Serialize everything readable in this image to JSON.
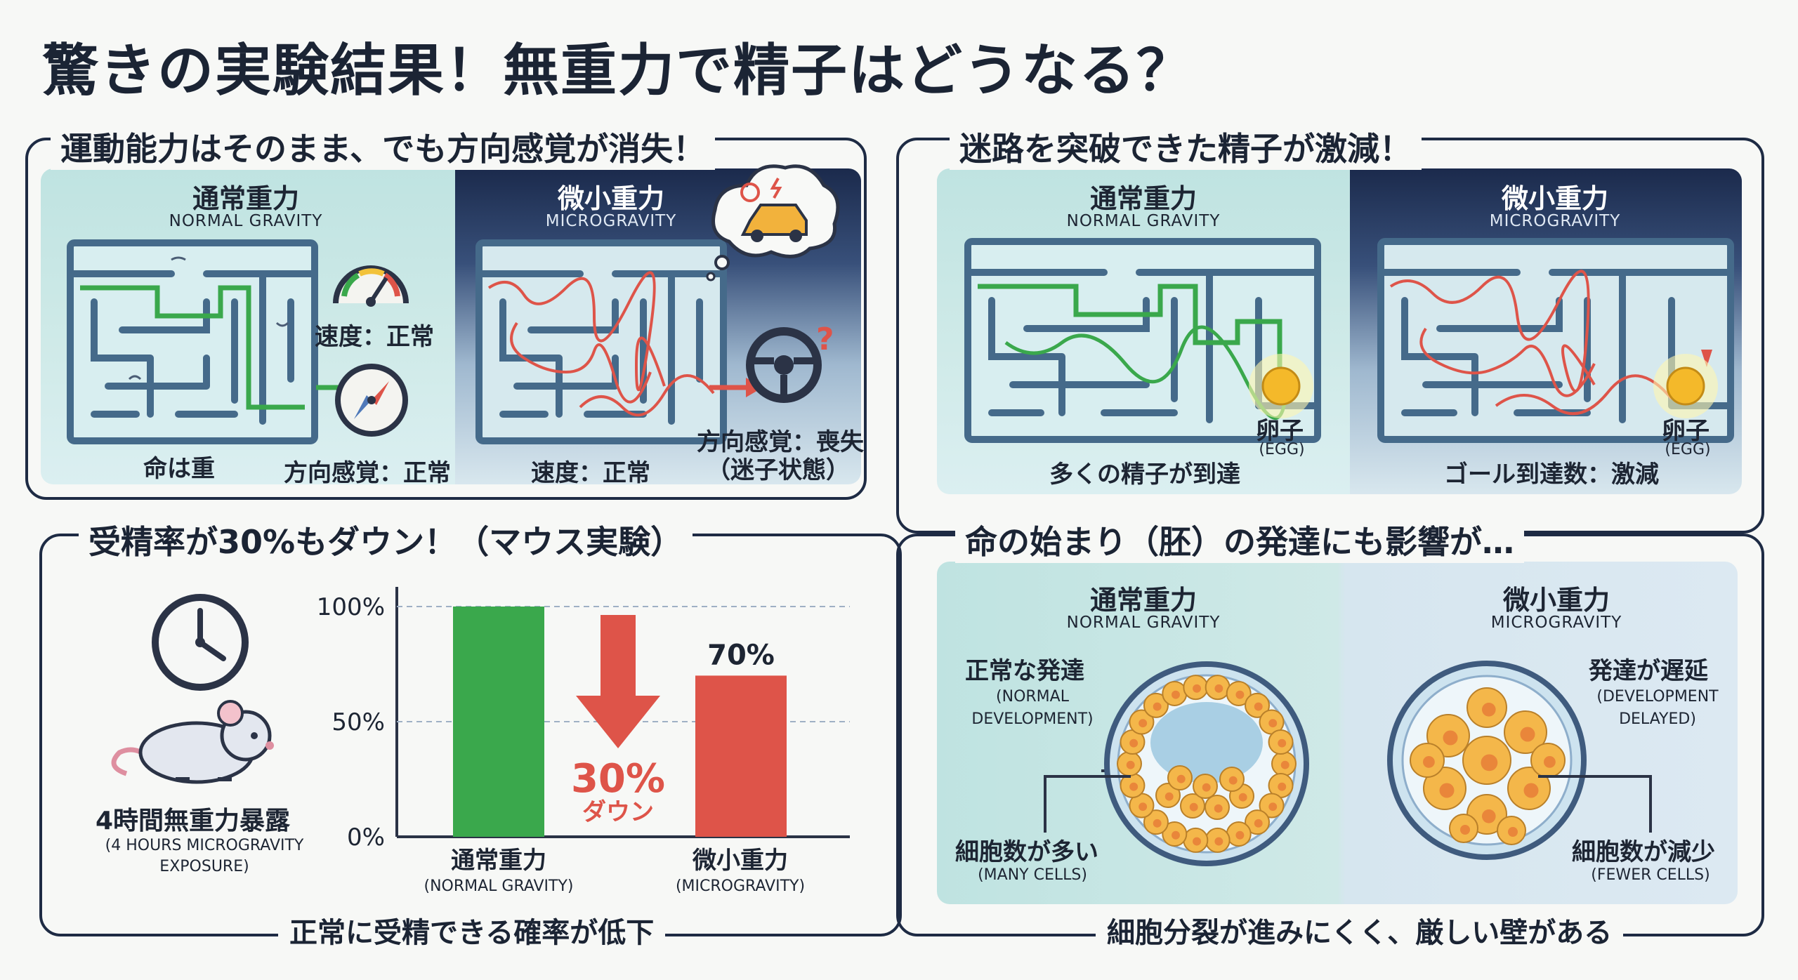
{
  "title": "驚きの実験結果！無重力で精子はどうなる？",
  "sections": {
    "motility": {
      "title": "運動能力はそのまま、でも方向感覚が消失！",
      "normal": {
        "title": "通常重力",
        "sub": "NORMAL GRAVITY",
        "speed": "速度：正常",
        "direction": "方向感覚：正常",
        "caption": "命は重"
      },
      "micro": {
        "title": "微小重力",
        "sub": "MICROGRAVITY",
        "speed": "速度：正常",
        "direction": "方向感覚：喪失",
        "direction_note": "（迷子状態）"
      }
    },
    "maze": {
      "title": "迷路を突破できた精子が激減！",
      "normal": {
        "title": "通常重力",
        "sub": "NORMAL GRAVITY",
        "egg": "卵子",
        "egg_en": "(EGG)",
        "caption": "多くの精子が到達"
      },
      "micro": {
        "title": "微小重力",
        "sub": "MICROGRAVITY",
        "egg": "卵子",
        "egg_en": "(EGG)",
        "caption": "ゴール到達数：激減"
      }
    },
    "fertilization": {
      "title": "受精率が30%もダウン！（マウス実験）",
      "exposure": "4時間無重力暴露",
      "exposure_en_1": "(4 HOURS MICROGRAVITY",
      "exposure_en_2": "EXPOSURE)",
      "bottom": "正常に受精できる確率が低下",
      "drop_label": "30%",
      "drop_sub": "ダウン"
    },
    "embryo": {
      "title": "命の始まり（胚）の発達にも影響が…",
      "normal": {
        "title": "通常重力",
        "sub": "NORMAL GRAVITY",
        "dev": "正常な発達",
        "dev_en_1": "(NORMAL",
        "dev_en_2": "DEVELOPMENT)",
        "cells": "細胞数が多い",
        "cells_en": "(MANY CELLS)"
      },
      "micro": {
        "title": "微小重力",
        "sub": "MICROGRAVITY",
        "dev": "発達が遅延",
        "dev_en_1": "(DEVELOPMENT",
        "dev_en_2": "DELAYED)",
        "cells": "細胞数が減少",
        "cells_en": "(FEWER CELLS)"
      },
      "bottom": "細胞分裂が進みにくく、厳しい壁がある"
    }
  },
  "chart_data": {
    "type": "bar",
    "categories": [
      "通常重力",
      "微小重力"
    ],
    "categories_en": [
      "(NORMAL GRAVITY)",
      "(MICROGRAVITY)"
    ],
    "values": [
      100,
      70
    ],
    "value_labels": [
      "",
      "70%"
    ],
    "yticks": [
      "0%",
      "50%",
      "100%"
    ],
    "ylim": [
      0,
      100
    ],
    "colors": [
      "#3aa84c",
      "#de5449"
    ]
  },
  "colors": {
    "green": "#3aa84c",
    "red": "#de5449",
    "navy": "#1e2b44"
  }
}
